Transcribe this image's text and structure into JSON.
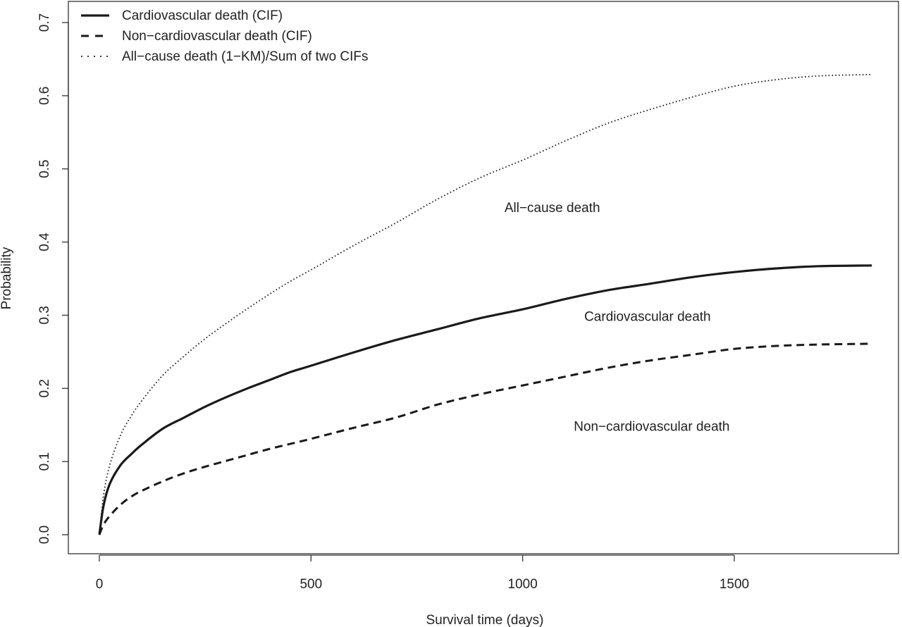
{
  "chart_data": {
    "type": "line",
    "xlabel": "Survival time (days)",
    "ylabel": "Probability",
    "xlim": [
      0,
      1825
    ],
    "ylim": [
      0,
      0.7
    ],
    "x_ticks": [
      0,
      500,
      1000,
      1500
    ],
    "y_ticks": [
      0.0,
      0.1,
      0.2,
      0.3,
      0.4,
      0.5,
      0.6,
      0.7
    ],
    "y_tick_labels": [
      "0.0",
      "0.1",
      "0.2",
      "0.3",
      "0.4",
      "0.5",
      "0.6",
      "0.7"
    ],
    "grid": false,
    "legend_position": "top-left",
    "series": [
      {
        "name": "Cardiovascular death (CIF)",
        "style": "solid",
        "x": [
          0,
          10,
          25,
          50,
          75,
          100,
          150,
          200,
          250,
          300,
          350,
          400,
          450,
          500,
          600,
          700,
          800,
          900,
          1000,
          1100,
          1200,
          1300,
          1400,
          1500,
          1600,
          1700,
          1825
        ],
        "y": [
          0.0,
          0.04,
          0.07,
          0.095,
          0.11,
          0.123,
          0.145,
          0.16,
          0.175,
          0.188,
          0.2,
          0.211,
          0.222,
          0.231,
          0.249,
          0.266,
          0.281,
          0.296,
          0.308,
          0.322,
          0.334,
          0.343,
          0.352,
          0.359,
          0.364,
          0.367,
          0.368
        ]
      },
      {
        "name": "Non-cardiovascular death (CIF)",
        "style": "dashed",
        "x": [
          0,
          10,
          25,
          50,
          75,
          100,
          150,
          200,
          250,
          300,
          350,
          400,
          450,
          500,
          600,
          700,
          800,
          900,
          1000,
          1100,
          1200,
          1300,
          1400,
          1500,
          1600,
          1700,
          1825
        ],
        "y": [
          0.0,
          0.014,
          0.026,
          0.041,
          0.052,
          0.06,
          0.073,
          0.084,
          0.093,
          0.101,
          0.109,
          0.117,
          0.124,
          0.131,
          0.146,
          0.16,
          0.178,
          0.192,
          0.204,
          0.216,
          0.228,
          0.238,
          0.246,
          0.254,
          0.258,
          0.26,
          0.261
        ]
      },
      {
        "name": "All-cause death (1-KM)/Sum of two CIFs",
        "style": "dotted",
        "x": [
          0,
          10,
          25,
          50,
          75,
          100,
          150,
          200,
          250,
          300,
          350,
          400,
          450,
          500,
          600,
          700,
          800,
          900,
          1000,
          1100,
          1200,
          1300,
          1400,
          1500,
          1600,
          1700,
          1825
        ],
        "y": [
          0.0,
          0.054,
          0.096,
          0.136,
          0.162,
          0.183,
          0.218,
          0.244,
          0.268,
          0.289,
          0.309,
          0.328,
          0.346,
          0.362,
          0.395,
          0.426,
          0.459,
          0.488,
          0.512,
          0.538,
          0.562,
          0.581,
          0.598,
          0.613,
          0.622,
          0.627,
          0.629
        ]
      }
    ],
    "annotations": [
      {
        "text": "All−cause death",
        "x": 1070,
        "y": 0.447
      },
      {
        "text": "Cardiovascular death",
        "x": 1295,
        "y": 0.298
      },
      {
        "text": "Non−cardiovascular death",
        "x": 1305,
        "y": 0.148
      }
    ]
  },
  "legend": {
    "items": [
      {
        "label": "Cardiovascular death (CIF)",
        "style": "solid"
      },
      {
        "label": "Non−cardiovascular death (CIF)",
        "style": "dashed"
      },
      {
        "label": "All−cause death (1−KM)/Sum of two CIFs",
        "style": "dotted"
      }
    ]
  },
  "colors": {
    "line": "#1a1a1a",
    "frame": "#333333",
    "background": "#ffffff"
  }
}
